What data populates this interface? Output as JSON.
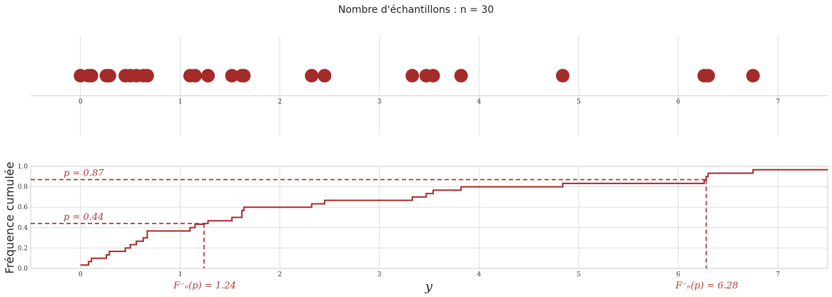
{
  "figure": {
    "title": "Nombre d'échantillons : n = 30",
    "color": "#a52a2a"
  },
  "chart_data": [
    {
      "type": "scatter",
      "panel": "top",
      "x": [
        0.0,
        0.08,
        0.11,
        0.26,
        0.29,
        0.45,
        0.5,
        0.56,
        0.63,
        0.67,
        1.1,
        1.15,
        1.28,
        1.52,
        1.62,
        1.64,
        2.32,
        2.45,
        3.33,
        3.47,
        3.54,
        3.82,
        4.84,
        6.26,
        6.3,
        6.75
      ],
      "y_constant": 0,
      "xlim": [
        -0.5,
        7.5
      ],
      "xticks": [
        "0",
        "1",
        "2",
        "3",
        "4",
        "5",
        "6",
        "7"
      ],
      "grid": true
    },
    {
      "type": "line",
      "panel": "bottom",
      "step": "post",
      "x": [
        0.0,
        0.08,
        0.11,
        0.26,
        0.29,
        0.45,
        0.5,
        0.56,
        0.63,
        0.67,
        1.1,
        1.15,
        1.24,
        1.28,
        1.52,
        1.62,
        1.64,
        2.32,
        2.45,
        3.33,
        3.47,
        3.54,
        3.82,
        4.84,
        6.26,
        6.28,
        6.3,
        6.75,
        7.5
      ],
      "y": [
        0.033,
        0.067,
        0.1,
        0.133,
        0.167,
        0.2,
        0.233,
        0.267,
        0.3,
        0.367,
        0.4,
        0.433,
        0.44,
        0.467,
        0.5,
        0.567,
        0.6,
        0.633,
        0.667,
        0.7,
        0.733,
        0.767,
        0.8,
        0.833,
        0.867,
        0.9,
        0.933,
        0.967,
        0.967
      ],
      "xlim": [
        -0.5,
        7.5
      ],
      "ylim": [
        0,
        1
      ],
      "xticks": [
        "0",
        "1",
        "2",
        "3",
        "4",
        "5",
        "6",
        "7"
      ],
      "yticks": [
        "0.0",
        "0.2",
        "0.4",
        "0.6",
        "0.8",
        "1.0"
      ],
      "xlabel": "y",
      "ylabel": "Fréquence cumulée",
      "grid": true,
      "quantiles": [
        {
          "p": 0.44,
          "q": 1.24,
          "p_label": "p = 0.44",
          "q_label": "F⁻ₙ(p) = 1.24"
        },
        {
          "p": 0.87,
          "q": 6.28,
          "p_label": "p = 0.87",
          "q_label": "F⁻ₙ(p) = 6.28"
        }
      ]
    }
  ]
}
